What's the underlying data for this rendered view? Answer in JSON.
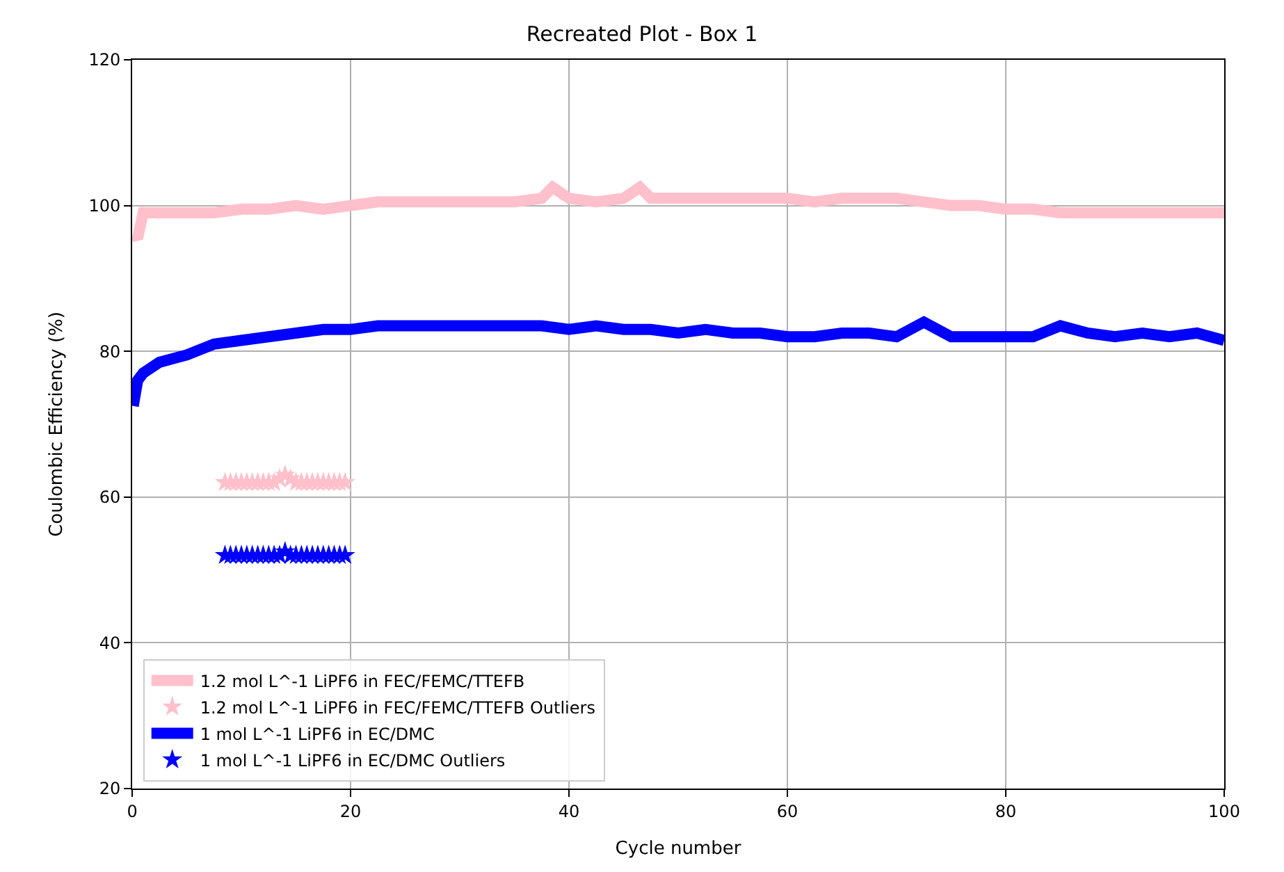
{
  "chart_data": {
    "type": "line",
    "title": "Recreated Plot - Box 1",
    "xlabel": "Cycle number",
    "ylabel": "Coulombic Efficiency (%)",
    "xlim": [
      0,
      100
    ],
    "ylim": [
      20,
      120
    ],
    "xticks": [
      0,
      20,
      40,
      60,
      80,
      100
    ],
    "yticks": [
      20,
      40,
      60,
      80,
      100,
      120
    ],
    "grid": true,
    "legend": "bottom left",
    "series": [
      {
        "name": "1.2 mol L^-1 LiPF6 in FEC/FEMC/TTEFB",
        "color": "#ffc0cb",
        "marker": "none",
        "x": [
          0.2,
          0.5,
          1,
          2.5,
          5,
          7.5,
          10,
          12.5,
          15,
          17.5,
          20,
          22.5,
          25,
          27.5,
          30,
          32.5,
          35,
          37.5,
          38.5,
          40,
          42.5,
          45,
          46.5,
          47.5,
          50,
          52.5,
          55,
          57.5,
          60,
          62.5,
          65,
          67.5,
          70,
          72.5,
          75,
          77.5,
          80,
          82.5,
          85,
          87.5,
          90,
          92.5,
          95,
          97.5,
          100
        ],
        "values": [
          96,
          95.5,
          99,
          99,
          99,
          99,
          99.5,
          99.5,
          100,
          99.5,
          100,
          100.5,
          100.5,
          100.5,
          100.5,
          100.5,
          100.5,
          101,
          102.5,
          101,
          100.5,
          101,
          102.5,
          101,
          101,
          101,
          101,
          101,
          101,
          100.5,
          101,
          101,
          101,
          100.5,
          100,
          100,
          99.5,
          99.5,
          99,
          99,
          99,
          99,
          99,
          99,
          99
        ]
      },
      {
        "name": "1.2 mol L^-1 LiPF6 in FEC/FEMC/TTEFB Outliers",
        "type": "scatter",
        "color": "#ffc0cb",
        "marker": "star",
        "x": [
          8.5,
          9,
          9.5,
          10,
          10.5,
          11,
          11.5,
          12,
          12.5,
          13,
          13.5,
          14,
          14.5,
          15,
          15.5,
          16,
          16.5,
          17,
          17.5,
          18,
          18.5,
          19,
          19.5
        ],
        "values": [
          62,
          62,
          62,
          62,
          62,
          62,
          62,
          62,
          62,
          62,
          62.5,
          63,
          62.5,
          62,
          62,
          62,
          62,
          62,
          62,
          62,
          62,
          62,
          62
        ]
      },
      {
        "name": "1 mol L^-1 LiPF6 in EC/DMC",
        "color": "#0000ff",
        "marker": "none",
        "x": [
          0.1,
          0.5,
          1,
          2.5,
          5,
          7.5,
          10,
          12.5,
          15,
          17.5,
          20,
          22.5,
          25,
          27.5,
          30,
          32.5,
          35,
          37.5,
          40,
          42.5,
          45,
          47.5,
          50,
          52.5,
          55,
          57.5,
          60,
          62.5,
          65,
          67.5,
          70,
          72.5,
          75,
          77.5,
          80,
          82.5,
          85,
          87.5,
          90,
          92.5,
          95,
          97.5,
          100
        ],
        "values": [
          72.5,
          76,
          77,
          78.5,
          79.5,
          81,
          81.5,
          82,
          82.5,
          83,
          83,
          83.5,
          83.5,
          83.5,
          83.5,
          83.5,
          83.5,
          83.5,
          83,
          83.5,
          83,
          83,
          82.5,
          83,
          82.5,
          82.5,
          82,
          82,
          82.5,
          82.5,
          82,
          84,
          82,
          82,
          82,
          82,
          83.5,
          82.5,
          82,
          82.5,
          82,
          82.5,
          81.5
        ]
      },
      {
        "name": "1 mol L^-1 LiPF6 in EC/DMC Outliers",
        "type": "scatter",
        "color": "#0000ff",
        "marker": "star",
        "x": [
          8.5,
          9,
          9.5,
          10,
          10.5,
          11,
          11.5,
          12,
          12.5,
          13,
          13.5,
          14,
          14.5,
          15,
          15.5,
          16,
          16.5,
          17,
          17.5,
          18,
          18.5,
          19,
          19.5
        ],
        "values": [
          52,
          52,
          52,
          52,
          52,
          52,
          52,
          52,
          52,
          52,
          52,
          52.5,
          52,
          52,
          52,
          52,
          52,
          52,
          52,
          52,
          52,
          52,
          52
        ]
      }
    ]
  }
}
